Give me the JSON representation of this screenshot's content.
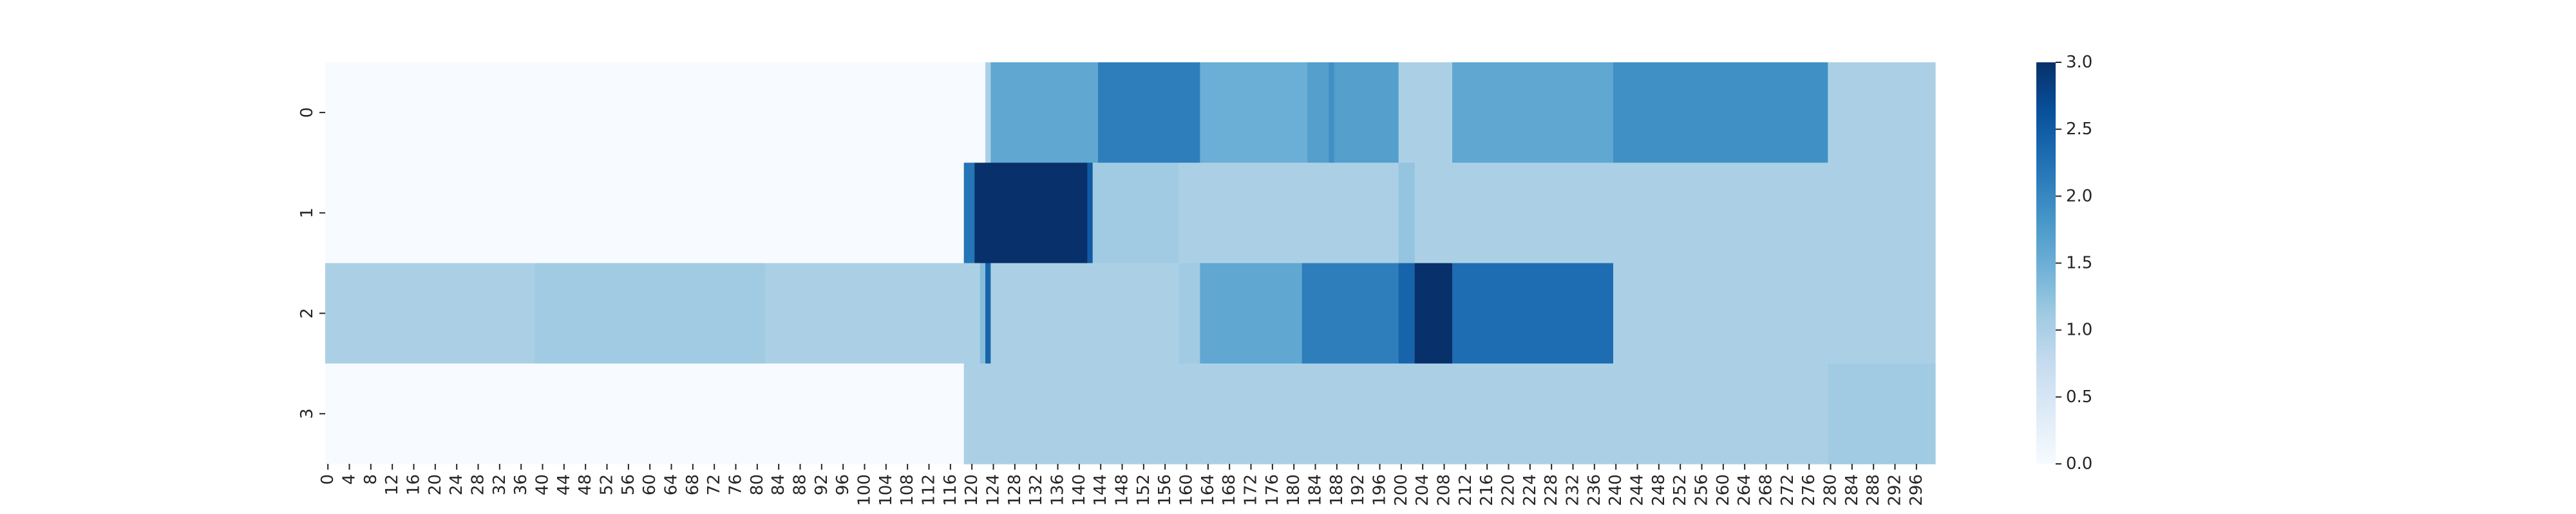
{
  "chart_data": {
    "type": "heatmap",
    "colormap": "Blues",
    "vmin": 0,
    "vmax": 3,
    "n_columns": 300,
    "y_categories": [
      "0",
      "1",
      "2",
      "3"
    ],
    "x_tick_labels": [
      "0",
      "4",
      "8",
      "12",
      "16",
      "20",
      "24",
      "28",
      "32",
      "36",
      "40",
      "44",
      "48",
      "52",
      "56",
      "60",
      "64",
      "68",
      "72",
      "76",
      "80",
      "84",
      "88",
      "92",
      "96",
      "100",
      "104",
      "108",
      "112",
      "116",
      "120",
      "124",
      "128",
      "132",
      "136",
      "140",
      "144",
      "148",
      "152",
      "156",
      "160",
      "164",
      "168",
      "172",
      "176",
      "180",
      "184",
      "188",
      "192",
      "196",
      "200",
      "204",
      "208",
      "212",
      "216",
      "220",
      "224",
      "228",
      "232",
      "236",
      "240",
      "244",
      "248",
      "252",
      "256",
      "260",
      "264",
      "268",
      "272",
      "276",
      "280",
      "284",
      "288",
      "292",
      "296"
    ],
    "colorbar_ticks": [
      "0.0",
      "0.5",
      "1.0",
      "1.5",
      "2.0",
      "2.5",
      "3.0"
    ],
    "rows": [
      {
        "row": "0",
        "segments": [
          {
            "from": 0,
            "to": 123,
            "value": 0
          },
          {
            "from": 123,
            "to": 124,
            "value": 1.0
          },
          {
            "from": 124,
            "to": 144,
            "value": 1.6
          },
          {
            "from": 144,
            "to": 163,
            "value": 2.1
          },
          {
            "from": 163,
            "to": 183,
            "value": 1.5
          },
          {
            "from": 183,
            "to": 187,
            "value": 1.7
          },
          {
            "from": 187,
            "to": 188,
            "value": 1.9
          },
          {
            "from": 188,
            "to": 200,
            "value": 1.7
          },
          {
            "from": 200,
            "to": 210,
            "value": 1.0
          },
          {
            "from": 210,
            "to": 240,
            "value": 1.6
          },
          {
            "from": 240,
            "to": 280,
            "value": 1.9
          },
          {
            "from": 280,
            "to": 300,
            "value": 1.0
          }
        ]
      },
      {
        "row": "1",
        "segments": [
          {
            "from": 0,
            "to": 119,
            "value": 0
          },
          {
            "from": 119,
            "to": 121,
            "value": 2.2
          },
          {
            "from": 121,
            "to": 142,
            "value": 3.0
          },
          {
            "from": 142,
            "to": 143,
            "value": 2.5
          },
          {
            "from": 143,
            "to": 159,
            "value": 1.1
          },
          {
            "from": 159,
            "to": 200,
            "value": 1.0
          },
          {
            "from": 200,
            "to": 203,
            "value": 1.2
          },
          {
            "from": 203,
            "to": 300,
            "value": 1.0
          }
        ]
      },
      {
        "row": "2",
        "segments": [
          {
            "from": 0,
            "to": 39,
            "value": 1.0
          },
          {
            "from": 39,
            "to": 82,
            "value": 1.1
          },
          {
            "from": 82,
            "to": 122,
            "value": 1.0
          },
          {
            "from": 122,
            "to": 123,
            "value": 1.3
          },
          {
            "from": 123,
            "to": 124,
            "value": 2.4
          },
          {
            "from": 124,
            "to": 159,
            "value": 1.0
          },
          {
            "from": 159,
            "to": 163,
            "value": 1.1
          },
          {
            "from": 163,
            "to": 182,
            "value": 1.6
          },
          {
            "from": 182,
            "to": 200,
            "value": 2.1
          },
          {
            "from": 200,
            "to": 203,
            "value": 2.4
          },
          {
            "from": 203,
            "to": 210,
            "value": 3.0
          },
          {
            "from": 210,
            "to": 240,
            "value": 2.3
          },
          {
            "from": 240,
            "to": 280,
            "value": 1.0
          },
          {
            "from": 280,
            "to": 300,
            "value": 1.0
          }
        ]
      },
      {
        "row": "3",
        "segments": [
          {
            "from": 0,
            "to": 119,
            "value": 0
          },
          {
            "from": 119,
            "to": 280,
            "value": 1.0
          },
          {
            "from": 280,
            "to": 300,
            "value": 1.1
          }
        ]
      }
    ]
  }
}
